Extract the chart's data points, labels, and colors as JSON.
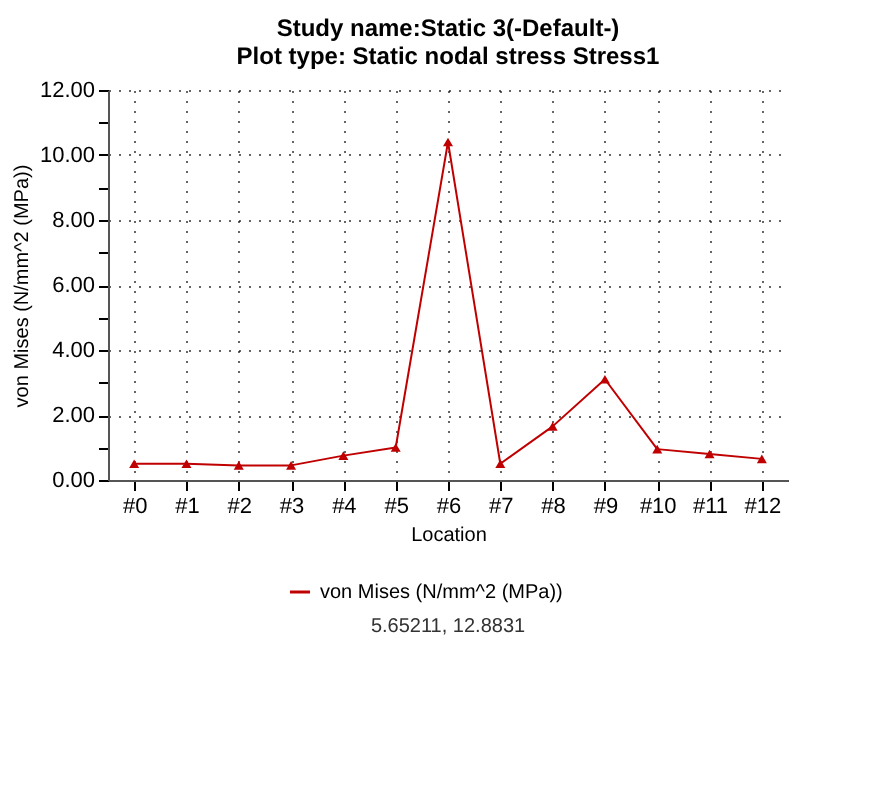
{
  "chart_data": {
    "type": "line",
    "title": [
      "Study name:Static 3(-Default-)",
      "Plot type: Static nodal stress Stress1"
    ],
    "xlabel": "Location",
    "ylabel": "von Mises (N/mm^2 (MPa))",
    "categories": [
      "#0",
      "#1",
      "#2",
      "#3",
      "#4",
      "#5",
      "#6",
      "#7",
      "#8",
      "#9",
      "#10",
      "#11",
      "#12"
    ],
    "series": [
      {
        "name": "von Mises (N/mm^2 (MPa))",
        "color": "#c00000",
        "values": [
          0.5,
          0.5,
          0.45,
          0.45,
          0.75,
          1.0,
          10.4,
          0.5,
          1.65,
          3.1,
          0.95,
          0.8,
          0.65
        ]
      }
    ],
    "ylim": [
      0,
      12
    ],
    "yticks": [
      {
        "value": 0,
        "label": "0.00"
      },
      {
        "value": 1,
        "label": null
      },
      {
        "value": 2,
        "label": "2.00"
      },
      {
        "value": 3,
        "label": null
      },
      {
        "value": 4,
        "label": "4.00"
      },
      {
        "value": 5,
        "label": null
      },
      {
        "value": 6,
        "label": "6.00"
      },
      {
        "value": 7,
        "label": null
      },
      {
        "value": 8,
        "label": "8.00"
      },
      {
        "value": 9,
        "label": null
      },
      {
        "value": 10,
        "label": "10.00"
      },
      {
        "value": 11,
        "label": null
      },
      {
        "value": 12,
        "label": "12.00"
      }
    ],
    "grid": true,
    "legend": "bottom",
    "marker": "triangle",
    "line_style": "solid",
    "annotations": [
      "5.65211, 12.8831"
    ]
  }
}
